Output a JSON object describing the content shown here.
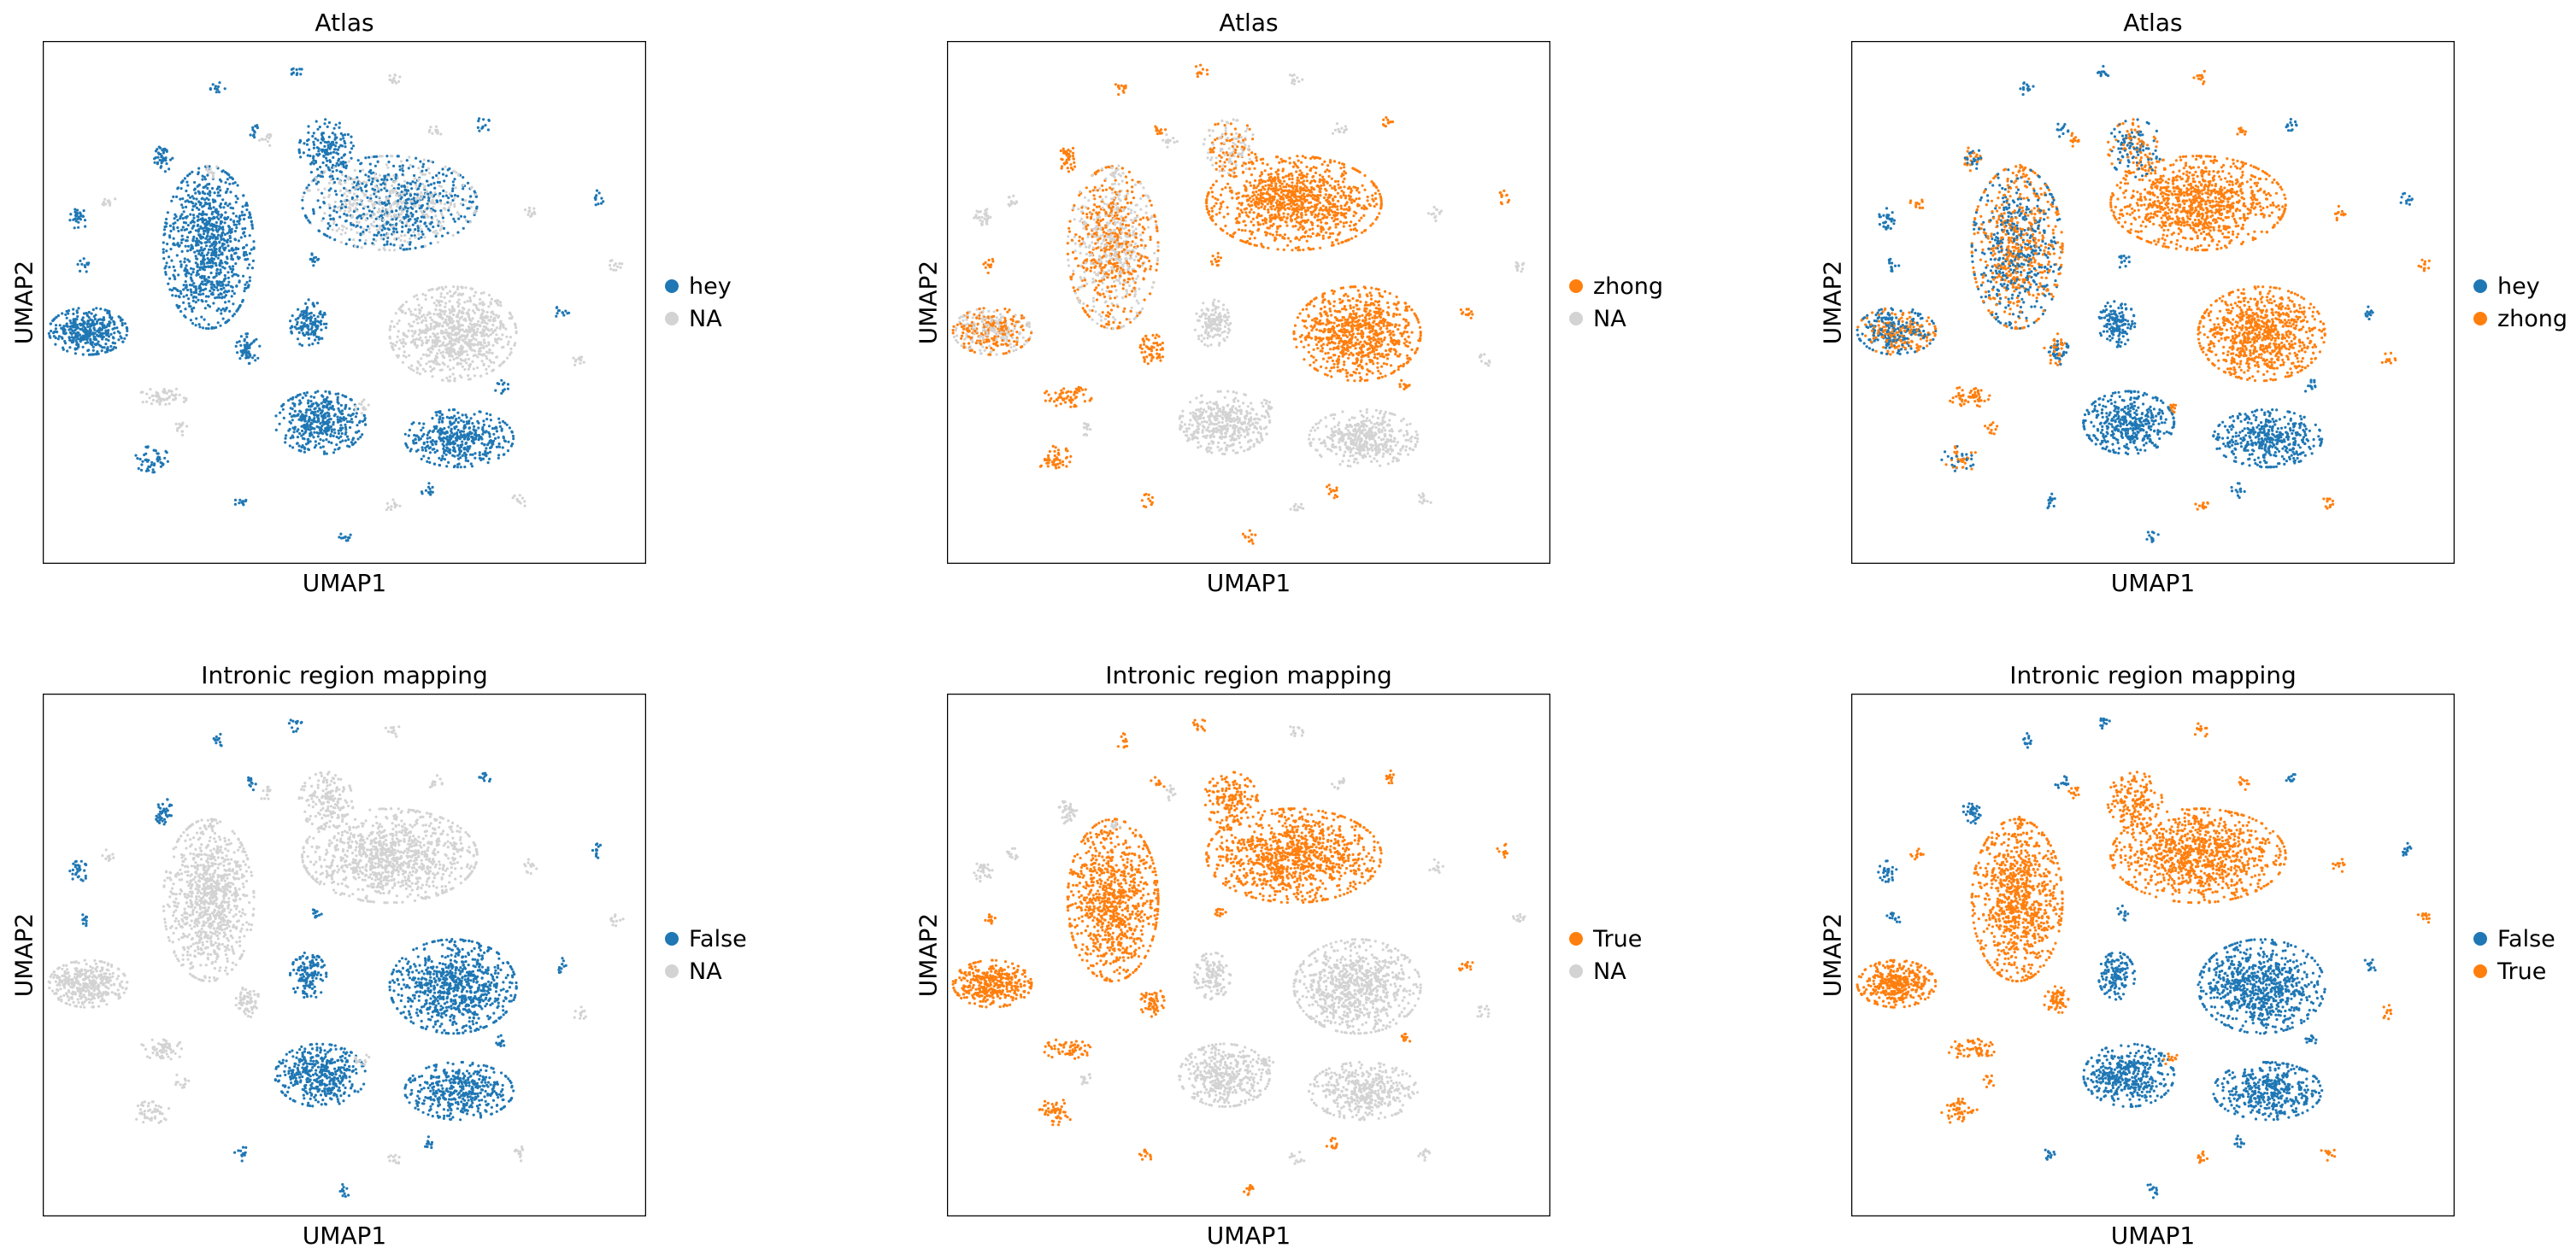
{
  "colors": {
    "blue": "#1f77b4",
    "orange": "#ff7f0e",
    "na": "#d3d3d3"
  },
  "chart_data": [
    {
      "type": "scatter",
      "title": "Atlas",
      "xlabel": "UMAP1",
      "ylabel": "UMAP2",
      "grid": false,
      "legend_position": "right",
      "legend": [
        {
          "label": "hey",
          "color": "#1f77b4"
        },
        {
          "label": "NA",
          "color": "#d3d3d3"
        }
      ]
    },
    {
      "type": "scatter",
      "title": "Atlas",
      "xlabel": "UMAP1",
      "ylabel": "UMAP2",
      "grid": false,
      "legend_position": "right",
      "legend": [
        {
          "label": "zhong",
          "color": "#ff7f0e"
        },
        {
          "label": "NA",
          "color": "#d3d3d3"
        }
      ]
    },
    {
      "type": "scatter",
      "title": "Atlas",
      "xlabel": "UMAP1",
      "ylabel": "UMAP2",
      "grid": false,
      "legend_position": "right",
      "legend": [
        {
          "label": "hey",
          "color": "#1f77b4"
        },
        {
          "label": "zhong",
          "color": "#ff7f0e"
        }
      ]
    },
    {
      "type": "scatter",
      "title": "Intronic region mapping",
      "xlabel": "UMAP1",
      "ylabel": "UMAP2",
      "grid": false,
      "legend_position": "right",
      "legend": [
        {
          "label": "False",
          "color": "#1f77b4"
        },
        {
          "label": "NA",
          "color": "#d3d3d3"
        }
      ]
    },
    {
      "type": "scatter",
      "title": "Intronic region mapping",
      "xlabel": "UMAP1",
      "ylabel": "UMAP2",
      "grid": false,
      "legend_position": "right",
      "legend": [
        {
          "label": "True",
          "color": "#ff7f0e"
        },
        {
          "label": "NA",
          "color": "#d3d3d3"
        }
      ]
    },
    {
      "type": "scatter",
      "title": "Intronic region mapping",
      "xlabel": "UMAP1",
      "ylabel": "UMAP2",
      "grid": false,
      "legend_position": "right",
      "legend": [
        {
          "label": "False",
          "color": "#1f77b4"
        },
        {
          "label": "True",
          "color": "#ff7f0e"
        }
      ]
    }
  ]
}
